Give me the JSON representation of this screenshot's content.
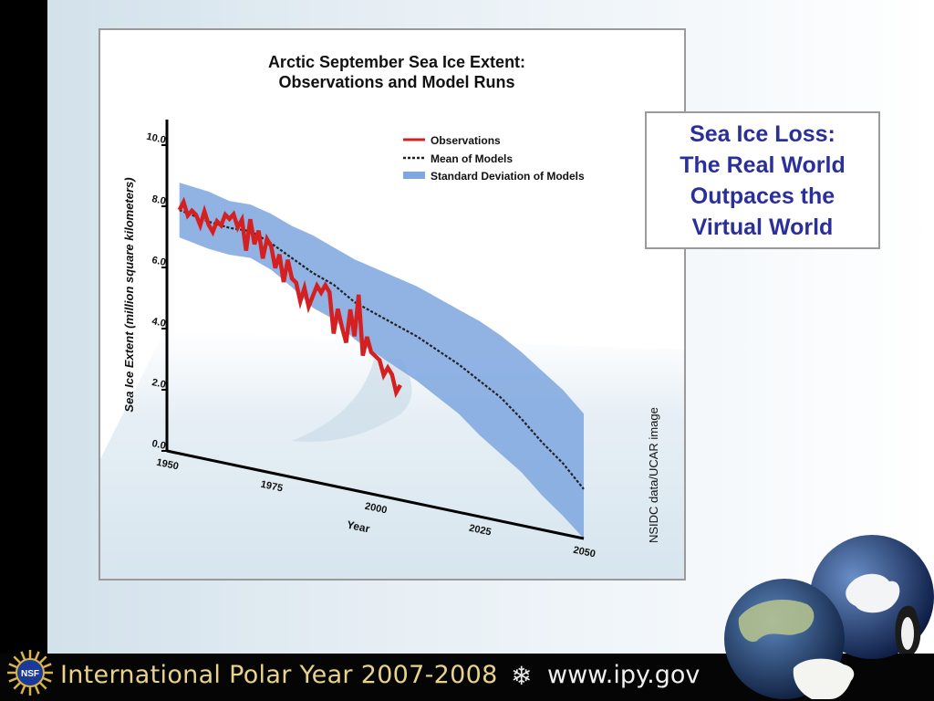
{
  "slide": {
    "callout_text": "Sea Ice Loss:\nThe Real World\nOutpaces the\nVirtual World",
    "footer_title": "International Polar Year 2007-2008",
    "footer_url": "www.ipy.gov",
    "nsf_logo_text": "NSF",
    "colors": {
      "callout_text": "#2b2f9a",
      "footer_title": "#e9d28a",
      "observations": "#d42020",
      "std_band": "#7ea6df",
      "mean_line": "#222222"
    },
    "icons": [
      "nsf-logo-icon",
      "snowflake-icon",
      "globe-icon",
      "penguin-icon",
      "polar-bear-icon"
    ]
  },
  "chart_data": {
    "type": "line",
    "title": "Arctic September Sea Ice Extent:\nObservations and Model Runs",
    "xlabel": "Year",
    "ylabel": "Sea Ice Extent (million square kilometers)",
    "source": "NSIDC data/UCAR image",
    "xlim": [
      1950,
      2050
    ],
    "ylim": [
      0,
      10
    ],
    "x_ticks": [
      "1950",
      "1975",
      "2000",
      "2025",
      "2050"
    ],
    "y_ticks": [
      "0.0",
      "2.0",
      "4.0",
      "6.0",
      "8.0",
      "10.0"
    ],
    "legend_position": "top-right",
    "legend": [
      "Observations",
      "Mean of Models",
      "Standard Deviation of Models"
    ],
    "series": [
      {
        "name": "Observations",
        "x": [
          1953,
          1954,
          1955,
          1956,
          1957,
          1958,
          1959,
          1960,
          1961,
          1962,
          1963,
          1964,
          1965,
          1966,
          1967,
          1968,
          1969,
          1970,
          1971,
          1972,
          1973,
          1974,
          1975,
          1976,
          1977,
          1978,
          1979,
          1980,
          1981,
          1982,
          1983,
          1984,
          1985,
          1986,
          1987,
          1988,
          1989,
          1990,
          1991,
          1992,
          1993,
          1994,
          1995,
          1996,
          1997,
          1998,
          1999,
          2000,
          2001,
          2002,
          2003,
          2004,
          2005,
          2006
        ],
        "values": [
          8.0,
          8.3,
          7.9,
          8.1,
          8.0,
          7.7,
          8.2,
          7.8,
          7.6,
          8.0,
          7.9,
          8.3,
          8.2,
          8.4,
          8.0,
          8.3,
          7.3,
          8.4,
          7.6,
          8.1,
          7.2,
          7.9,
          7.7,
          7.0,
          7.5,
          6.6,
          7.4,
          6.8,
          6.7,
          6.1,
          6.6,
          6.0,
          6.4,
          6.8,
          6.6,
          6.9,
          6.7,
          5.3,
          6.2,
          5.6,
          5.1,
          6.3,
          5.4,
          6.9,
          4.8,
          5.5,
          5.0,
          4.9,
          4.8,
          4.3,
          4.6,
          4.4,
          3.8,
          4.1
        ]
      },
      {
        "name": "Mean of Models",
        "x": [
          1953,
          1960,
          1965,
          1970,
          1975,
          1980,
          1985,
          1990,
          1995,
          2000,
          2005,
          2010,
          2015,
          2020,
          2025,
          2030,
          2035,
          2040,
          2045,
          2050
        ],
        "values": [
          8.0,
          7.9,
          7.9,
          8.0,
          7.8,
          7.5,
          7.2,
          7.0,
          6.6,
          6.4,
          6.2,
          6.0,
          5.7,
          5.4,
          5.0,
          4.6,
          4.0,
          3.3,
          2.7,
          1.9
        ]
      },
      {
        "name": "Standard Deviation of Models",
        "x": [
          1953,
          1960,
          1965,
          1970,
          1975,
          1980,
          1985,
          1990,
          1995,
          2000,
          2005,
          2010,
          2015,
          2020,
          2025,
          2030,
          2035,
          2040,
          2045,
          2050
        ],
        "upper": [
          8.9,
          8.9,
          8.8,
          8.9,
          8.8,
          8.6,
          8.5,
          8.3,
          8.1,
          8.0,
          7.9,
          7.8,
          7.6,
          7.4,
          7.2,
          6.9,
          6.5,
          6.0,
          5.5,
          4.8
        ],
        "lower": [
          7.1,
          7.0,
          7.0,
          7.1,
          6.9,
          6.5,
          6.0,
          5.8,
          5.3,
          5.0,
          4.7,
          4.4,
          4.0,
          3.6,
          3.0,
          2.5,
          2.0,
          1.3,
          0.7,
          0.0
        ]
      }
    ]
  }
}
